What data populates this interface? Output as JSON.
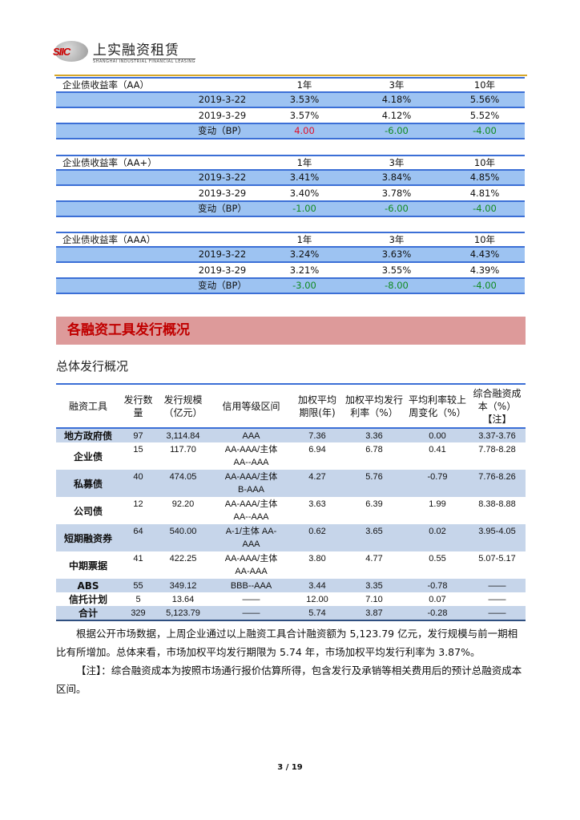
{
  "header": {
    "logo_mark": "SIIC",
    "logo_cn": "上实融资租赁",
    "logo_en": "SHANGHAI INDUSTRIAL FINANCIAL LEASING"
  },
  "yield_tables": [
    {
      "title": "企业债收益率（AA）",
      "cols": [
        "1年",
        "3年",
        "10年"
      ],
      "rows": [
        {
          "label": "2019-3-22",
          "values": [
            "3.53%",
            "4.18%",
            "5.56%"
          ]
        },
        {
          "label": "2019-3-29",
          "values": [
            "3.57%",
            "4.12%",
            "5.52%"
          ]
        }
      ],
      "change": {
        "label": "变动（BP）",
        "values": [
          "4.00",
          "-6.00",
          "-4.00"
        ]
      }
    },
    {
      "title": "企业债收益率（AA+）",
      "cols": [
        "1年",
        "3年",
        "10年"
      ],
      "rows": [
        {
          "label": "2019-3-22",
          "values": [
            "3.41%",
            "3.84%",
            "4.85%"
          ]
        },
        {
          "label": "2019-3-29",
          "values": [
            "3.40%",
            "3.78%",
            "4.81%"
          ]
        }
      ],
      "change": {
        "label": "变动（BP）",
        "values": [
          "-1.00",
          "-6.00",
          "-4.00"
        ]
      }
    },
    {
      "title": "企业债收益率（AAA）",
      "cols": [
        "1年",
        "3年",
        "10年"
      ],
      "rows": [
        {
          "label": "2019-3-22",
          "values": [
            "3.24%",
            "3.63%",
            "4.43%"
          ]
        },
        {
          "label": "2019-3-29",
          "values": [
            "3.21%",
            "3.55%",
            "4.39%"
          ]
        }
      ],
      "change": {
        "label": "变动（BP）",
        "values": [
          "-3.00",
          "-8.00",
          "-4.00"
        ]
      }
    }
  ],
  "section_title": "各融资工具发行概况",
  "subtitle": "总体发行概况",
  "issuance": {
    "headers": [
      "融资工具",
      "发行数量",
      "发行规模（亿元）",
      "信用等级区间",
      "加权平均期限(年)",
      "加权平均发行利率（%）",
      "平均利率较上周变化（%）",
      "综合融资成本（%）【注】"
    ],
    "rows": [
      [
        "地方政府债",
        "97",
        "3,114.84",
        "AAA",
        "7.36",
        "3.36",
        "0.00",
        "3.37-3.76"
      ],
      [
        "企业债",
        "15",
        "117.70",
        "AA-AAA/主体 AA--AAA",
        "6.94",
        "6.78",
        "0.41",
        "7.78-8.28"
      ],
      [
        "私募债",
        "40",
        "474.05",
        "AA-AAA/主体 B-AAA",
        "4.27",
        "5.76",
        "-0.79",
        "7.76-8.26"
      ],
      [
        "公司债",
        "12",
        "92.20",
        "AA-AAA/主体 AA--AAA",
        "3.63",
        "6.39",
        "1.99",
        "8.38-8.88"
      ],
      [
        "短期融资券",
        "64",
        "540.00",
        "A-1/主体 AA-AAA",
        "0.62",
        "3.65",
        "0.02",
        "3.95-4.05"
      ],
      [
        "中期票据",
        "41",
        "422.25",
        "AA-AAA/主体 AA-AAA",
        "3.80",
        "4.77",
        "0.55",
        "5.07-5.17"
      ],
      [
        "ABS",
        "55",
        "349.12",
        "BBB--AAA",
        "3.44",
        "3.35",
        "-0.78",
        "——"
      ],
      [
        "信托计划",
        "5",
        "13.64",
        "——",
        "12.00",
        "7.10",
        "0.07",
        "——"
      ],
      [
        "合计",
        "329",
        "5,123.79",
        "——",
        "5.74",
        "3.87",
        "-0.28",
        "——"
      ]
    ]
  },
  "paragraphs": [
    "根据公开市场数据，上周企业通过以上融资工具合计融资额为 5,123.79 亿元，发行规模与前一期相比有所增加。总体来看，市场加权平均发行期限为 5.74 年，市场加权平均发行利率为 3.87%。",
    "【注】：综合融资成本为按照市场通行报价估算所得，包含发行及承销等相关费用后的预计总融资成本区间。"
  ],
  "page_number": "3 / 19",
  "colors": {
    "positive": "#e0102a",
    "negative": "#108a20",
    "row_blue": "#9dc3f2",
    "section_bg": "#dd9a9a",
    "section_text": "#c00000"
  }
}
